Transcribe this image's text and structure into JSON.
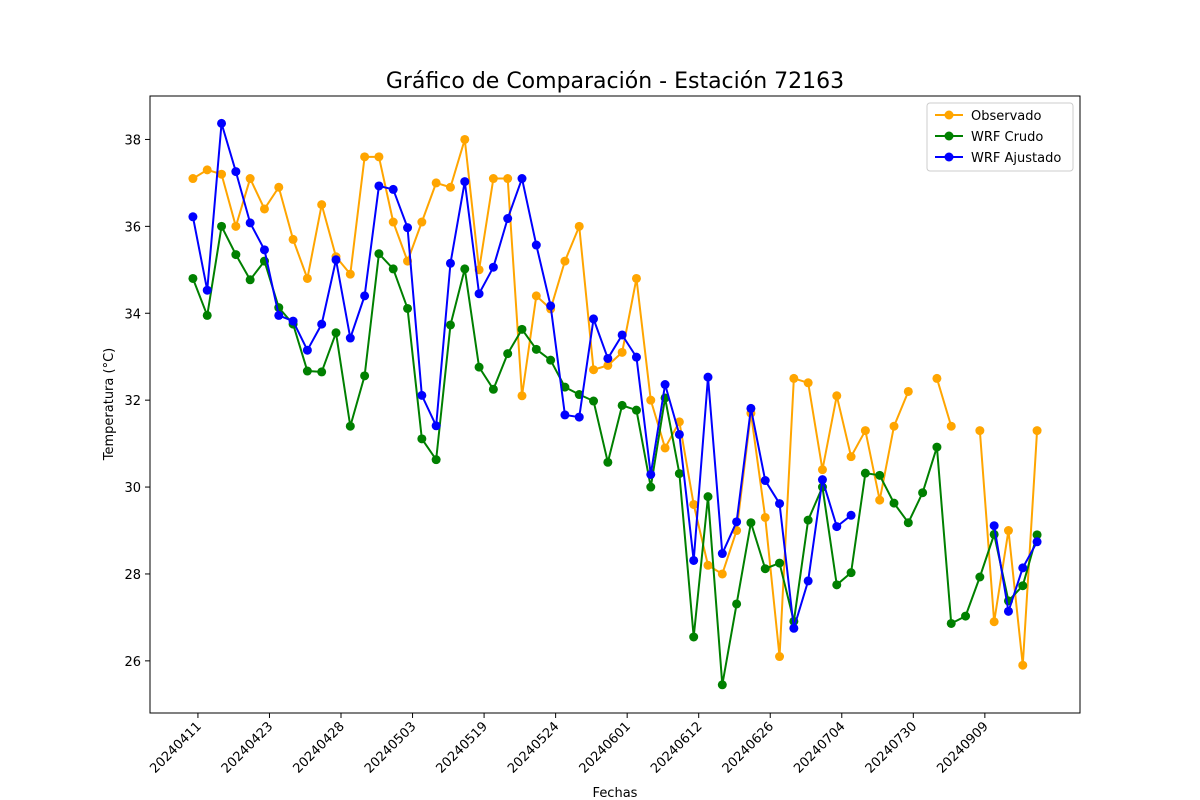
{
  "chart_data": {
    "type": "line",
    "title": "Gráfico de Comparación - Estación 72163",
    "xlabel": "Fechas",
    "ylabel": "Temperatura (°C)",
    "ylim": [
      24.8,
      39.0
    ],
    "yticks": [
      26,
      28,
      30,
      32,
      34,
      36,
      38
    ],
    "xticklabels": [
      "20240411",
      "20240423",
      "20240428",
      "20240503",
      "20240519",
      "20240524",
      "20240601",
      "20240612",
      "20240626",
      "20240704",
      "20240730",
      "20240909"
    ],
    "xtick_positions": [
      0.35,
      5.35,
      10.35,
      15.35,
      20.35,
      25.35,
      30.35,
      35.35,
      40.35,
      45.35,
      50.35,
      55.35
    ],
    "xlim": [
      -3,
      62
    ],
    "legend_position": "upper right",
    "series": [
      {
        "name": "Observado",
        "color": "#ffa500",
        "values": [
          37.1,
          37.3,
          37.2,
          36.0,
          37.1,
          36.4,
          36.9,
          35.7,
          34.8,
          36.5,
          35.3,
          34.9,
          37.6,
          37.6,
          36.1,
          35.2,
          36.1,
          37.0,
          36.9,
          38.0,
          35.0,
          37.1,
          37.1,
          32.1,
          34.4,
          34.1,
          35.2,
          36.0,
          32.7,
          32.8,
          33.1,
          34.8,
          32.0,
          30.9,
          31.5,
          29.6,
          28.2,
          28.0,
          29.0,
          31.7,
          29.3,
          26.1,
          32.5,
          32.4,
          30.4,
          32.1,
          30.7,
          31.3,
          29.7,
          31.4,
          32.2,
          null,
          32.5,
          31.4,
          null,
          31.3,
          26.9,
          29.0,
          25.9,
          31.3
        ]
      },
      {
        "name": "WRF Crudo",
        "color": "#008000",
        "values": [
          34.8,
          33.95,
          36.0,
          35.35,
          34.77,
          35.2,
          34.13,
          33.75,
          32.67,
          32.65,
          33.55,
          31.4,
          32.56,
          35.37,
          35.02,
          34.11,
          31.11,
          30.63,
          33.73,
          35.02,
          32.76,
          32.25,
          33.07,
          33.63,
          33.17,
          32.92,
          32.3,
          32.13,
          31.98,
          30.57,
          31.88,
          31.77,
          30.0,
          32.05,
          30.31,
          26.55,
          29.78,
          25.45,
          27.31,
          29.18,
          28.12,
          28.25,
          26.91,
          29.24,
          30.0,
          27.75,
          28.03,
          30.32,
          30.27,
          29.63,
          29.18,
          29.87,
          30.92,
          26.86,
          27.03,
          27.93,
          28.91,
          27.38,
          27.73,
          28.9
        ]
      },
      {
        "name": "WRF Ajustado",
        "color": "#0000ff",
        "values": [
          36.22,
          34.53,
          38.37,
          37.26,
          36.08,
          35.46,
          33.95,
          33.82,
          33.15,
          33.75,
          35.23,
          33.43,
          34.4,
          36.93,
          36.85,
          35.97,
          32.11,
          31.41,
          35.15,
          37.03,
          34.45,
          35.06,
          36.18,
          37.1,
          35.57,
          34.17,
          31.66,
          31.61,
          33.87,
          32.96,
          33.5,
          32.99,
          30.29,
          32.36,
          31.21,
          28.31,
          32.53,
          28.47,
          29.2,
          31.81,
          30.15,
          29.62,
          26.75,
          27.84,
          30.17,
          29.09,
          29.35,
          null,
          null,
          null,
          null,
          null,
          null,
          null,
          null,
          null,
          29.11,
          27.14,
          28.14,
          28.74
        ]
      }
    ]
  }
}
